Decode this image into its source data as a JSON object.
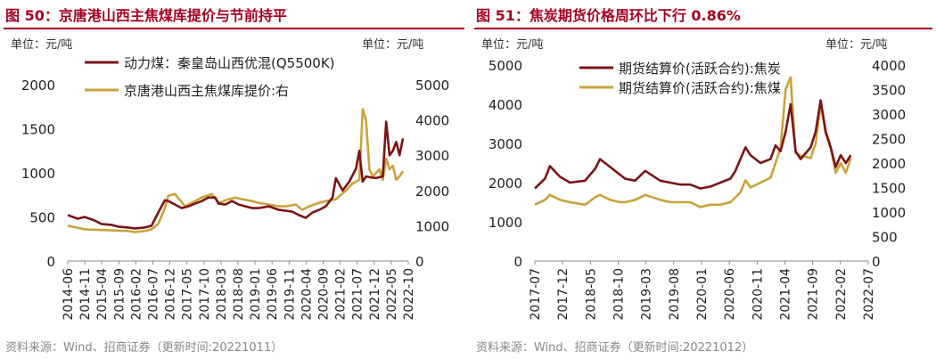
{
  "charts": [
    {
      "title": "图 50：京唐港山西主焦煤库提价与节前持平",
      "source": "资料来源：Wind、招商证券（更新时间:20221011）",
      "left_unit": "单位：元/吨",
      "right_unit": "单位：元/吨",
      "colors": {
        "series1": "#7b1416",
        "series2": "#c9a23b",
        "title": "#a50021"
      },
      "chart_data": {
        "type": "line",
        "x_tick_labels": [
          "2014-06",
          "2014-11",
          "2015-04",
          "2015-09",
          "2016-02",
          "2016-07",
          "2016-12",
          "2017-05",
          "2017-10",
          "2018-03",
          "2018-08",
          "2019-01",
          "2019-06",
          "2019-11",
          "2020-04",
          "2020-09",
          "2021-02",
          "2021-07",
          "2021-12",
          "2022-05",
          "2022-10"
        ],
        "y_left_ticks": [
          0,
          500,
          1000,
          1500,
          2000
        ],
        "y_right_ticks": [
          0,
          1000,
          2000,
          3000,
          4000,
          5000
        ],
        "ylim_left": [
          0,
          2000
        ],
        "ylim_right": [
          0,
          5000
        ],
        "grid": false,
        "legend_position": "top-left",
        "series": [
          {
            "name": "动力煤：秦皇岛山西优混(Q5500K)",
            "axis": "left",
            "x": [
              "2014-06",
              "2014-09",
              "2014-11",
              "2015-02",
              "2015-04",
              "2015-07",
              "2015-09",
              "2015-12",
              "2016-02",
              "2016-05",
              "2016-07",
              "2016-09",
              "2016-11",
              "2016-12",
              "2017-02",
              "2017-04",
              "2017-06",
              "2017-08",
              "2017-10",
              "2017-12",
              "2018-02",
              "2018-03",
              "2018-05",
              "2018-07",
              "2018-09",
              "2018-11",
              "2019-01",
              "2019-03",
              "2019-06",
              "2019-09",
              "2019-11",
              "2020-01",
              "2020-03",
              "2020-05",
              "2020-07",
              "2020-09",
              "2020-11",
              "2021-01",
              "2021-02",
              "2021-04",
              "2021-06",
              "2021-08",
              "2021-09",
              "2021-10",
              "2021-11",
              "2021-12",
              "2022-02",
              "2022-03",
              "2022-04",
              "2022-05",
              "2022-06",
              "2022-07",
              "2022-08",
              "2022-09",
              "2022-10"
            ],
            "y": [
              520,
              480,
              500,
              460,
              420,
              410,
              390,
              380,
              370,
              380,
              400,
              550,
              690,
              680,
              640,
              600,
              620,
              650,
              680,
              720,
              720,
              650,
              640,
              680,
              640,
              620,
              600,
              600,
              620,
              580,
              570,
              560,
              520,
              490,
              550,
              580,
              620,
              720,
              940,
              800,
              900,
              1050,
              1250,
              900,
              960,
              950,
              940,
              950,
              960,
              1580,
              1200,
              1250,
              1350,
              1200,
              1390
            ]
          },
          {
            "name": "京唐港山西主焦煤库提价:右",
            "axis": "right",
            "x": [
              "2014-06",
              "2014-11",
              "2015-04",
              "2015-09",
              "2015-12",
              "2016-02",
              "2016-05",
              "2016-07",
              "2016-09",
              "2016-11",
              "2016-12",
              "2017-02",
              "2017-05",
              "2017-08",
              "2017-10",
              "2018-01",
              "2018-03",
              "2018-06",
              "2018-08",
              "2018-10",
              "2019-01",
              "2019-03",
              "2019-06",
              "2019-09",
              "2019-11",
              "2020-02",
              "2020-04",
              "2020-06",
              "2020-09",
              "2020-11",
              "2021-02",
              "2021-05",
              "2021-07",
              "2021-09",
              "2021-10",
              "2021-11",
              "2021-12",
              "2022-01",
              "2022-03",
              "2022-04",
              "2022-05",
              "2022-06",
              "2022-07",
              "2022-08",
              "2022-09",
              "2022-10"
            ],
            "y": [
              1000,
              900,
              880,
              860,
              850,
              820,
              850,
              900,
              1050,
              1500,
              1850,
              1900,
              1550,
              1700,
              1800,
              1900,
              1650,
              1750,
              1800,
              1750,
              1700,
              1650,
              1600,
              1550,
              1550,
              1600,
              1450,
              1550,
              1650,
              1700,
              1750,
              2000,
              2200,
              2300,
              4300,
              4000,
              2600,
              2400,
              2600,
              2300,
              2900,
              2600,
              2700,
              2300,
              2400,
              2550
            ]
          }
        ]
      }
    },
    {
      "title": "图 51：焦炭期货价格周环比下行 0.86%",
      "source": "资料来源：Wind、招商证券（更新时间:20221012）",
      "left_unit": "单位：元/吨",
      "right_unit": "单位：元/吨",
      "colors": {
        "series1": "#7b1416",
        "series2": "#c9a23b",
        "title": "#a50021"
      },
      "chart_data": {
        "type": "line",
        "x_tick_labels": [
          "2017-07",
          "2017-12",
          "2018-05",
          "2018-10",
          "2019-03",
          "2019-08",
          "2020-01",
          "2020-06",
          "2020-11",
          "2021-04",
          "2021-09",
          "2022-02",
          "2022-07"
        ],
        "y_left_ticks": [
          0,
          1000,
          2000,
          3000,
          4000,
          5000
        ],
        "y_right_ticks": [
          0,
          500,
          1000,
          1500,
          2000,
          2500,
          3000,
          3500,
          4000
        ],
        "ylim_left": [
          0,
          5000
        ],
        "ylim_right": [
          0,
          4000
        ],
        "grid": false,
        "legend_position": "top-left",
        "series": [
          {
            "name": "期货结算价(活跃合约):焦炭",
            "axis": "left",
            "x": [
              "2017-07",
              "2017-09",
              "2017-10",
              "2017-12",
              "2018-02",
              "2018-05",
              "2018-07",
              "2018-08",
              "2018-10",
              "2018-12",
              "2019-01",
              "2019-03",
              "2019-05",
              "2019-08",
              "2019-10",
              "2019-12",
              "2020-02",
              "2020-04",
              "2020-06",
              "2020-08",
              "2020-10",
              "2020-11",
              "2020-12",
              "2021-01",
              "2021-02",
              "2021-04",
              "2021-06",
              "2021-07",
              "2021-08",
              "2021-09",
              "2021-10",
              "2021-11",
              "2021-12",
              "2022-02",
              "2022-03",
              "2022-04",
              "2022-05",
              "2022-06",
              "2022-07",
              "2022-08",
              "2022-09",
              "2022-10"
            ],
            "y": [
              1850,
              2100,
              2420,
              2150,
              2000,
              2050,
              2350,
              2600,
              2400,
              2200,
              2100,
              2050,
              2300,
              2050,
              2000,
              1950,
              1950,
              1850,
              1900,
              2000,
              2100,
              2300,
              2600,
              2900,
              2700,
              2500,
              2600,
              2950,
              2800,
              3300,
              4000,
              2800,
              2600,
              2900,
              3300,
              4100,
              3300,
              2900,
              2400,
              2700,
              2500,
              2700
            ]
          },
          {
            "name": "期货结算价(活跃合约):焦煤",
            "axis": "right",
            "x": [
              "2017-07",
              "2017-09",
              "2017-10",
              "2017-12",
              "2018-02",
              "2018-05",
              "2018-07",
              "2018-08",
              "2018-10",
              "2018-12",
              "2019-01",
              "2019-03",
              "2019-05",
              "2019-08",
              "2019-10",
              "2019-12",
              "2020-02",
              "2020-04",
              "2020-06",
              "2020-08",
              "2020-10",
              "2020-11",
              "2020-12",
              "2021-01",
              "2021-02",
              "2021-04",
              "2021-06",
              "2021-07",
              "2021-08",
              "2021-09",
              "2021-10",
              "2021-11",
              "2021-12",
              "2022-02",
              "2022-03",
              "2022-04",
              "2022-05",
              "2022-06",
              "2022-07",
              "2022-08",
              "2022-09",
              "2022-10"
            ],
            "y": [
              1150,
              1250,
              1350,
              1250,
              1200,
              1150,
              1300,
              1350,
              1250,
              1200,
              1200,
              1250,
              1350,
              1250,
              1200,
              1200,
              1200,
              1100,
              1150,
              1150,
              1200,
              1300,
              1400,
              1650,
              1500,
              1600,
              1700,
              2000,
              2300,
              3500,
              3750,
              2200,
              2150,
              2100,
              2400,
              3200,
              2600,
              2300,
              1800,
              2000,
              1800,
              2100
            ]
          }
        ]
      }
    }
  ]
}
